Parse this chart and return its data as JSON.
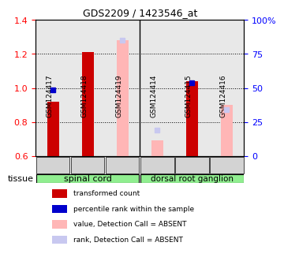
{
  "title": "GDS2209 / 1423546_at",
  "samples": [
    "GSM124417",
    "GSM124418",
    "GSM124419",
    "GSM124414",
    "GSM124415",
    "GSM124416"
  ],
  "tissue_groups": [
    {
      "label": "spinal cord",
      "samples": [
        0,
        1,
        2
      ]
    },
    {
      "label": "dorsal root ganglion",
      "samples": [
        3,
        4,
        5
      ]
    }
  ],
  "red_values": [
    0.92,
    1.21,
    null,
    null,
    1.04,
    null
  ],
  "blue_markers": [
    0.99,
    null,
    null,
    null,
    1.03,
    null
  ],
  "pink_values": [
    null,
    null,
    1.28,
    0.69,
    null,
    0.9
  ],
  "lavender_markers": [
    null,
    null,
    1.28,
    0.75,
    null,
    0.875
  ],
  "blue_marker_rank": [
    49,
    null,
    null,
    null,
    51,
    null
  ],
  "ylim_left": [
    0.6,
    1.4
  ],
  "ylim_right": [
    0,
    100
  ],
  "yticks_left": [
    0.6,
    0.8,
    1.0,
    1.2,
    1.4
  ],
  "yticks_right": [
    0,
    25,
    50,
    75,
    100
  ],
  "right_tick_labels": [
    "0",
    "25",
    "50",
    "75",
    "100%"
  ],
  "bar_width": 0.35,
  "background_color": "#ffffff",
  "plot_bg_color": "#e8e8e8",
  "tissue_bg_color": "#90ee90",
  "red_color": "#cc0000",
  "blue_color": "#0000cc",
  "pink_color": "#ffb6b6",
  "lavender_color": "#c8c8f0",
  "legend_items": [
    {
      "color": "#cc0000",
      "label": "transformed count"
    },
    {
      "color": "#0000cc",
      "label": "percentile rank within the sample"
    },
    {
      "color": "#ffb6b6",
      "label": "value, Detection Call = ABSENT"
    },
    {
      "color": "#c8c8f0",
      "label": "rank, Detection Call = ABSENT"
    }
  ]
}
